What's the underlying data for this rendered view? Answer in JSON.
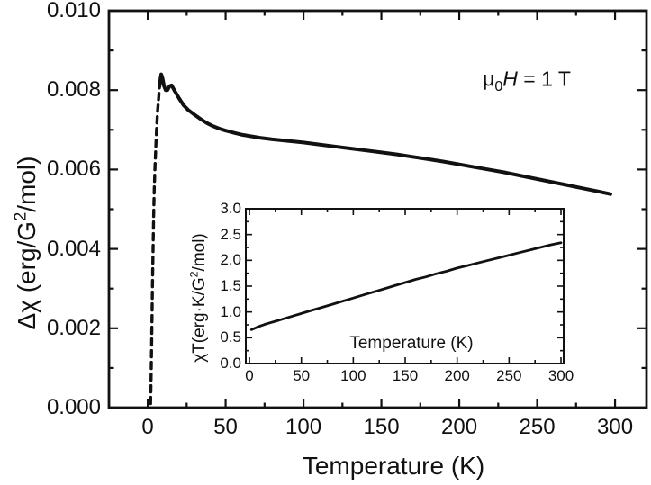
{
  "page": {
    "background": "#ffffff",
    "ink": "#111111"
  },
  "labels": {
    "main": {
      "xlabel": "Temperature (K)",
      "ylabel": {
        "pre": "Δχ (erg/G",
        "sup": "2",
        "post": "/mol)"
      },
      "annotation": {
        "mu": "μ",
        "sub": "0",
        "var": "H",
        "rest": " = 1 T"
      }
    },
    "inset": {
      "xlabel": "Temperature (K)",
      "ylabel": {
        "pre": "χT(erg·K/G",
        "sup": "2",
        "post": "/mol)"
      }
    }
  },
  "chart_data": [
    {
      "id": "main",
      "type": "line",
      "title": "",
      "xlabel": "Temperature (K)",
      "ylabel": "Δχ (erg/G²/mol)",
      "annotation": "μ0H = 1 T",
      "xlim": [
        -24.9,
        320.2
      ],
      "ylim": [
        0,
        0.01
      ],
      "grid": false,
      "xticks": {
        "values": [
          0,
          50,
          100,
          150,
          200,
          250,
          300
        ],
        "labels": [
          "0",
          "50",
          "100",
          "150",
          "200",
          "250",
          "300"
        ],
        "minor": [
          25,
          75,
          125,
          175,
          225,
          275
        ]
      },
      "yticks": {
        "values": [
          0,
          0.002,
          0.004,
          0.006,
          0.008,
          0.01
        ],
        "labels": [
          "0.000",
          "0.002",
          "0.004",
          "0.006",
          "0.008",
          "0.010"
        ],
        "minor": [
          0.001,
          0.003,
          0.005,
          0.007,
          0.009
        ]
      },
      "series": [
        {
          "name": "delta-chi vs T",
          "points": [
            [
              1.8,
              0.0001
            ],
            [
              2.0,
              0.0004
            ],
            [
              2.2,
              0.0009
            ],
            [
              2.5,
              0.0016
            ],
            [
              2.8,
              0.0024
            ],
            [
              3.1,
              0.0032
            ],
            [
              3.4,
              0.004
            ],
            [
              3.8,
              0.0048
            ],
            [
              4.2,
              0.0055
            ],
            [
              4.7,
              0.0061
            ],
            [
              5.2,
              0.0066
            ],
            [
              5.8,
              0.0071
            ],
            [
              6.4,
              0.0075
            ],
            [
              7.0,
              0.0078
            ],
            [
              7.6,
              0.0081
            ],
            [
              8.2,
              0.0083
            ],
            [
              8.7,
              0.0084
            ],
            [
              9.5,
              0.0083
            ],
            [
              10.5,
              0.0081
            ],
            [
              11.5,
              0.008
            ],
            [
              12.7,
              0.008
            ],
            [
              14.0,
              0.0081
            ],
            [
              15.4,
              0.00812
            ],
            [
              17.0,
              0.008
            ],
            [
              18.5,
              0.0079
            ],
            [
              20.0,
              0.0078
            ],
            [
              23.0,
              0.00762
            ],
            [
              26.0,
              0.0075
            ],
            [
              30.0,
              0.00738
            ],
            [
              34.0,
              0.00727
            ],
            [
              38.0,
              0.00717
            ],
            [
              42.0,
              0.00709
            ],
            [
              46.0,
              0.00703
            ],
            [
              50.0,
              0.00698
            ],
            [
              55.0,
              0.00693
            ],
            [
              60.0,
              0.00688
            ],
            [
              66.0,
              0.00684
            ],
            [
              72.0,
              0.0068
            ],
            [
              80.0,
              0.00676
            ],
            [
              90.0,
              0.00672
            ],
            [
              100.0,
              0.00668
            ],
            [
              110.0,
              0.00663
            ],
            [
              120.0,
              0.00658
            ],
            [
              130.0,
              0.00653
            ],
            [
              140.0,
              0.00648
            ],
            [
              150.0,
              0.00643
            ],
            [
              160.0,
              0.00638
            ],
            [
              170.0,
              0.00632
            ],
            [
              180.0,
              0.00626
            ],
            [
              190.0,
              0.0062
            ],
            [
              200.0,
              0.00613
            ],
            [
              210.0,
              0.00606
            ],
            [
              220.0,
              0.00599
            ],
            [
              230.0,
              0.00592
            ],
            [
              240.0,
              0.00584
            ],
            [
              250.0,
              0.00576
            ],
            [
              260.0,
              0.00568
            ],
            [
              270.0,
              0.0056
            ],
            [
              280.0,
              0.00552
            ],
            [
              290.0,
              0.00544
            ],
            [
              297.0,
              0.00538
            ]
          ]
        }
      ]
    },
    {
      "id": "inset",
      "type": "line",
      "title": "",
      "xlabel": "Temperature (K)",
      "ylabel": "χT(erg·K/G²/mol)",
      "xlim": [
        -3.5,
        302.6
      ],
      "ylim": [
        0,
        3.0
      ],
      "grid": false,
      "xticks": {
        "values": [
          0,
          50,
          100,
          150,
          200,
          250,
          300
        ],
        "labels": [
          "0",
          "50",
          "100",
          "150",
          "200",
          "250",
          "300"
        ],
        "minor": [
          25,
          75,
          125,
          175,
          225,
          275
        ]
      },
      "yticks": {
        "values": [
          0.0,
          0.5,
          1.0,
          1.5,
          2.0,
          2.5,
          3.0
        ],
        "labels": [
          "0.0",
          "0.5",
          "1.0",
          "1.5",
          "2.0",
          "2.5",
          "3.0"
        ],
        "minor": [
          0.25,
          0.75,
          1.25,
          1.75,
          2.25,
          2.75
        ]
      },
      "series": [
        {
          "name": "chi-T vs T",
          "points": [
            [
              2,
              0.655
            ],
            [
              4,
              0.675
            ],
            [
              6,
              0.69
            ],
            [
              8,
              0.71
            ],
            [
              10,
              0.725
            ],
            [
              15,
              0.76
            ],
            [
              20,
              0.79
            ],
            [
              25,
              0.82
            ],
            [
              30,
              0.85
            ],
            [
              40,
              0.91
            ],
            [
              50,
              0.97
            ],
            [
              60,
              1.03
            ],
            [
              70,
              1.09
            ],
            [
              80,
              1.15
            ],
            [
              90,
              1.21
            ],
            [
              100,
              1.27
            ],
            [
              110,
              1.33
            ],
            [
              120,
              1.39
            ],
            [
              130,
              1.45
            ],
            [
              140,
              1.51
            ],
            [
              150,
              1.57
            ],
            [
              160,
              1.63
            ],
            [
              170,
              1.68
            ],
            [
              180,
              1.74
            ],
            [
              190,
              1.79
            ],
            [
              200,
              1.85
            ],
            [
              210,
              1.9
            ],
            [
              220,
              1.95
            ],
            [
              230,
              2.0
            ],
            [
              240,
              2.05
            ],
            [
              250,
              2.1
            ],
            [
              260,
              2.15
            ],
            [
              270,
              2.2
            ],
            [
              280,
              2.25
            ],
            [
              290,
              2.3
            ],
            [
              300,
              2.34
            ]
          ]
        }
      ]
    }
  ]
}
